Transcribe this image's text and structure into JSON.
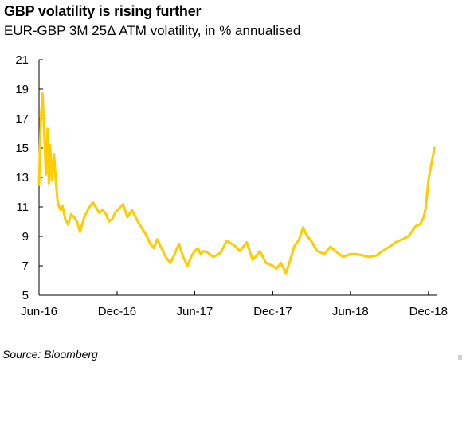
{
  "title": "GBP volatility is rising further",
  "subtitle": "EUR-GBP 3M 25Δ ATM volatility, in % annualised",
  "source": "Source: Bloomberg",
  "colors": {
    "line": "#FFCC00",
    "axis": "#000000"
  },
  "chart_data": {
    "type": "line",
    "title": "GBP volatility is rising further",
    "subtitle": "EUR-GBP 3M 25Δ ATM volatility, in % annualised",
    "xlabel": "",
    "ylabel": "",
    "ylim": [
      5,
      21
    ],
    "yticks": [
      5,
      7,
      9,
      11,
      13,
      15,
      17,
      19,
      21
    ],
    "xlim": [
      "2016-06-01",
      "2018-12-20"
    ],
    "xtick_dates": [
      "2016-06-01",
      "2016-12-01",
      "2017-06-01",
      "2017-12-01",
      "2018-06-01",
      "2018-12-01"
    ],
    "xtick_labels": [
      "Jun-16",
      "Dec-16",
      "Jun-17",
      "Dec-17",
      "Jun-18",
      "Dec-18"
    ],
    "grid": false,
    "legend": "none",
    "series": [
      {
        "x": [
          "2016-06-01",
          "2016-06-05",
          "2016-06-09",
          "2016-06-13",
          "2016-06-17",
          "2016-06-21",
          "2016-06-24",
          "2016-06-27",
          "2016-07-01",
          "2016-07-06",
          "2016-07-10",
          "2016-07-14",
          "2016-07-18",
          "2016-07-22",
          "2016-07-26",
          "2016-08-01",
          "2016-08-08",
          "2016-08-15",
          "2016-08-22",
          "2016-08-29",
          "2016-09-05",
          "2016-09-15",
          "2016-09-25",
          "2016-10-05",
          "2016-10-12",
          "2016-10-20",
          "2016-10-28",
          "2016-11-05",
          "2016-11-12",
          "2016-11-20",
          "2016-11-28",
          "2016-12-06",
          "2016-12-15",
          "2016-12-25",
          "2017-01-05",
          "2017-01-15",
          "2017-01-25",
          "2017-02-05",
          "2017-02-15",
          "2017-02-25",
          "2017-03-05",
          "2017-03-15",
          "2017-03-25",
          "2017-04-05",
          "2017-04-15",
          "2017-04-25",
          "2017-05-05",
          "2017-05-15",
          "2017-05-25",
          "2017-06-01",
          "2017-06-08",
          "2017-06-15",
          "2017-06-22",
          "2017-07-01",
          "2017-07-15",
          "2017-08-01",
          "2017-08-15",
          "2017-09-01",
          "2017-09-15",
          "2017-10-01",
          "2017-10-15",
          "2017-11-01",
          "2017-11-15",
          "2017-12-01",
          "2017-12-10",
          "2017-12-20",
          "2018-01-01",
          "2018-01-10",
          "2018-01-20",
          "2018-02-01",
          "2018-02-10",
          "2018-02-20",
          "2018-03-01",
          "2018-03-15",
          "2018-04-01",
          "2018-04-15",
          "2018-05-01",
          "2018-05-15",
          "2018-06-01",
          "2018-06-15",
          "2018-07-01",
          "2018-07-15",
          "2018-08-01",
          "2018-08-15",
          "2018-09-01",
          "2018-09-15",
          "2018-10-01",
          "2018-10-15",
          "2018-11-01",
          "2018-11-10",
          "2018-11-15",
          "2018-11-20",
          "2018-11-25",
          "2018-12-01",
          "2018-12-05",
          "2018-12-10",
          "2018-12-15"
        ],
        "values": [
          12.5,
          16.8,
          18.7,
          16.2,
          13.2,
          16.3,
          12.6,
          15.2,
          12.8,
          14.6,
          12.9,
          11.5,
          11.0,
          10.8,
          11.1,
          10.2,
          9.8,
          10.5,
          10.3,
          10.0,
          9.3,
          10.3,
          10.9,
          11.3,
          11.0,
          10.6,
          10.8,
          10.5,
          10.0,
          10.2,
          10.7,
          10.9,
          11.2,
          10.3,
          10.8,
          10.2,
          9.7,
          9.2,
          8.6,
          8.2,
          8.8,
          8.2,
          7.6,
          7.2,
          7.8,
          8.5,
          7.6,
          7.0,
          7.7,
          8.0,
          8.2,
          7.8,
          8.0,
          7.9,
          7.6,
          7.9,
          8.7,
          8.4,
          8.0,
          8.6,
          7.4,
          8.0,
          7.2,
          7.0,
          6.8,
          7.2,
          6.5,
          7.3,
          8.3,
          8.8,
          9.6,
          9.0,
          8.7,
          8.0,
          7.8,
          8.3,
          7.9,
          7.6,
          7.8,
          7.8,
          7.7,
          7.6,
          7.7,
          8.0,
          8.3,
          8.6,
          8.8,
          9.0,
          9.7,
          9.8,
          10.0,
          10.3,
          11.0,
          12.8,
          13.5,
          14.2,
          15.0
        ]
      }
    ]
  }
}
